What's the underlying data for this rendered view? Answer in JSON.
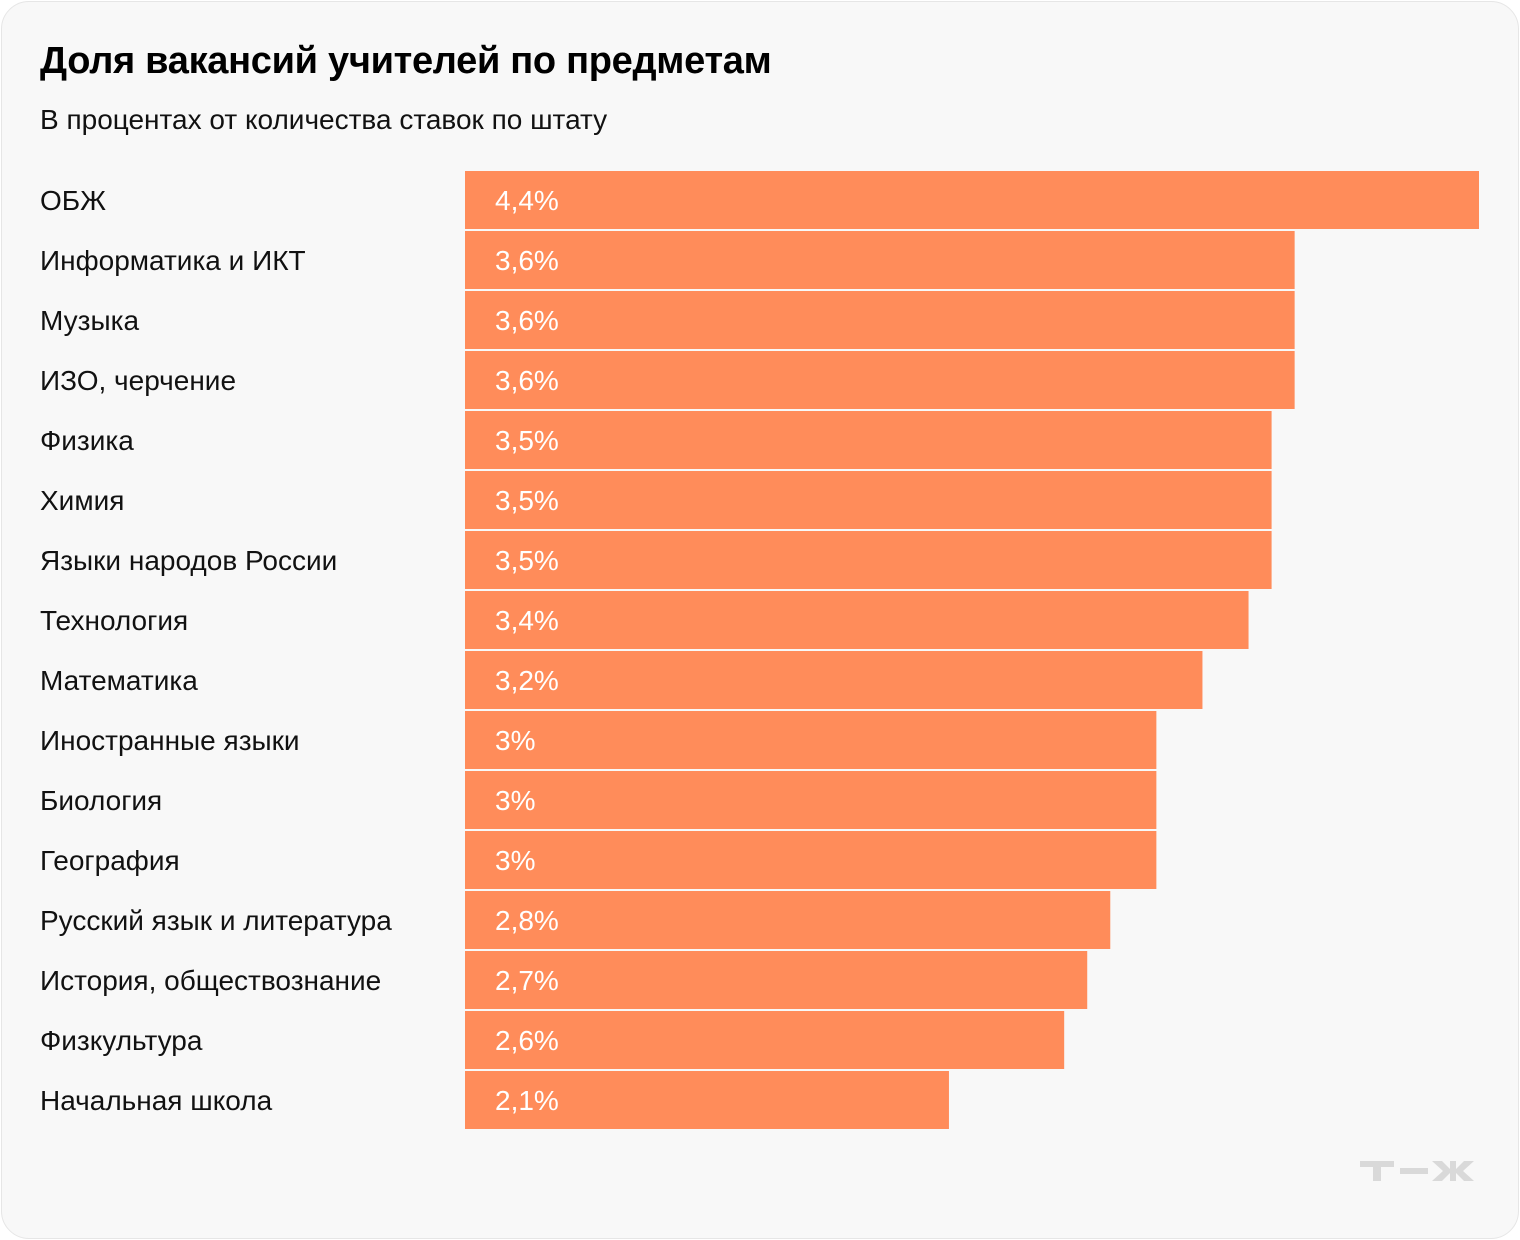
{
  "header": {
    "title": "Доля вакансий учителей по предметам",
    "subtitle": "В процентах от количества ставок по штату"
  },
  "logo": {
    "text": "т—ж"
  },
  "colors": {
    "bar": "#ff8c5a",
    "background": "#f8f8f8"
  },
  "chart_data": {
    "type": "bar",
    "orientation": "horizontal",
    "title": "Доля вакансий учителей по предметам",
    "subtitle": "В процентах от количества ставок по штату",
    "categories": [
      "ОБЖ",
      "Информатика и ИКТ",
      "Музыка",
      "ИЗО, черчение",
      "Физика",
      "Химия",
      "Языки народов России",
      "Технология",
      "Математика",
      "Иностранные языки",
      "Биология",
      "География",
      "Русский язык и литература",
      "История, обществознание",
      "Физкультура",
      "Начальная школа"
    ],
    "values": [
      4.4,
      3.6,
      3.6,
      3.6,
      3.5,
      3.5,
      3.5,
      3.4,
      3.2,
      3,
      3,
      3,
      2.8,
      2.7,
      2.6,
      2.1
    ],
    "labels": [
      "4,4%",
      "3,6%",
      "3,6%",
      "3,6%",
      "3,5%",
      "3,5%",
      "3,5%",
      "3,4%",
      "3,2%",
      "3%",
      "3%",
      "3%",
      "2,8%",
      "2,7%",
      "2,6%",
      "2,1%"
    ],
    "xlim": [
      0,
      4.4
    ],
    "grid": false,
    "xlabel": "",
    "ylabel": ""
  }
}
